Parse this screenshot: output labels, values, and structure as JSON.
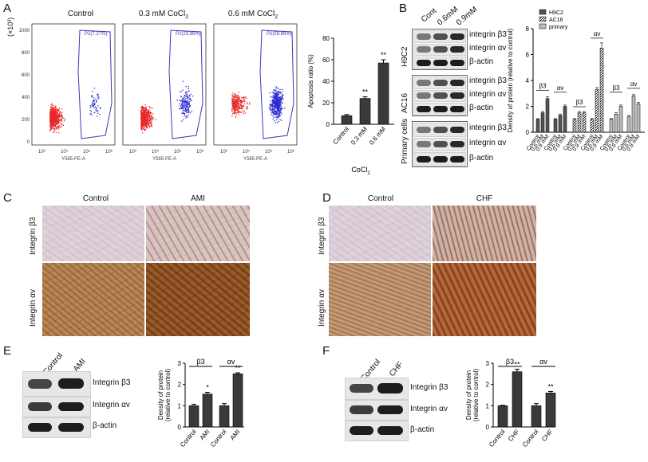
{
  "panels": {
    "A": "A",
    "B": "B",
    "C": "C",
    "D": "D",
    "E": "E",
    "F": "F"
  },
  "panel_a": {
    "flow_titles": [
      "Control",
      "0.3 mM CoCl",
      "0.6 mM CoCl"
    ],
    "subscript": "2",
    "gate_labels": [
      "P2(7.27%)",
      "P2(23.86%)",
      "P2(59.86%)"
    ],
    "y_axis_caption": "(×10³)",
    "y_ticks": [
      "1000",
      "800",
      "600",
      "400",
      "200",
      "0"
    ],
    "x_ticks": [
      "10³",
      "10⁴",
      "10⁵",
      "10⁶"
    ],
    "x_axis_caption": "Y585-PE-A",
    "colors": {
      "dots_red": "#e8282a",
      "dots_blue": "#2a2ad0",
      "gate": "#3a3ab8"
    }
  },
  "panel_b": {
    "lane_labels": [
      "Cont",
      "0.6mM",
      "0.9mM"
    ],
    "groups": [
      "H9C2",
      "AC16",
      "Primary cells"
    ],
    "band_labels": [
      "integrin β3",
      "integrin αv",
      "β-actin"
    ]
  },
  "panel_c": {
    "columns": [
      "Control",
      "AMI"
    ],
    "rows": [
      "Integrin β3",
      "Integrin αv"
    ]
  },
  "panel_d": {
    "columns": [
      "Control",
      "CHF"
    ],
    "rows": [
      "Integrin β3",
      "Integrin αv"
    ]
  },
  "panel_e": {
    "lanes": [
      "Control",
      "AMI"
    ],
    "bands": [
      "Integrin β3",
      "Integrin αv",
      "β-actin"
    ]
  },
  "panel_f": {
    "lanes": [
      "Control",
      "CHF"
    ],
    "bands": [
      "Integrin β3",
      "Integrin αv",
      "β-actin"
    ]
  },
  "chart_data": [
    {
      "id": "A-bar",
      "type": "bar",
      "categories": [
        "Control",
        "0.3 mM",
        "0.6 mM"
      ],
      "values": [
        8,
        24,
        57
      ],
      "errors": [
        1,
        1.5,
        3
      ],
      "sig": [
        "",
        "**",
        "**"
      ],
      "ylabel": "Apoptosis ratio (%)",
      "xlabel": "CoCl",
      "xlabel_sub": "2",
      "ylim": [
        0,
        80
      ],
      "yticks": [
        0,
        20,
        40,
        60,
        80
      ]
    },
    {
      "id": "B-bar",
      "type": "bar",
      "ylabel": "Density of protein (relative to control)",
      "ylim": [
        0,
        8
      ],
      "yticks": [
        0,
        2,
        4,
        6,
        8
      ],
      "legend": [
        "H9C2",
        "AC16",
        "primary"
      ],
      "legend_position": "top-left",
      "categories": [
        "Control",
        "0.6 mM",
        "0.9 mM",
        "Control",
        "0.6 mM",
        "0.9 mM"
      ],
      "groups": [
        {
          "name": "H9C2",
          "brackets": [
            "β3",
            "αv"
          ],
          "values": [
            1.0,
            1.5,
            2.6,
            1.0,
            1.3,
            2.0
          ],
          "errors": [
            0.05,
            0.1,
            0.15,
            0.05,
            0.1,
            0.1
          ]
        },
        {
          "name": "AC16",
          "brackets": [
            "β3",
            "αv"
          ],
          "values": [
            1.0,
            1.5,
            1.5,
            1.0,
            3.3,
            6.5
          ],
          "errors": [
            0.05,
            0.1,
            0.1,
            0.05,
            0.15,
            0.4
          ]
        },
        {
          "name": "primary",
          "brackets": [
            "β3",
            "αv"
          ],
          "values": [
            1.0,
            1.4,
            2.0,
            1.2,
            2.8,
            2.2
          ],
          "errors": [
            0.05,
            0.1,
            0.1,
            0.1,
            0.1,
            0.1
          ]
        }
      ],
      "bracket_labels": [
        "β3",
        "αv",
        "β3",
        "αv",
        "β3",
        "αv"
      ]
    },
    {
      "id": "E-bar",
      "type": "bar",
      "categories": [
        "Control",
        "AMI",
        "Control",
        "AMI"
      ],
      "values": [
        1.0,
        1.55,
        1.0,
        2.5
      ],
      "errors": [
        0.07,
        0.08,
        0.1,
        0.05
      ],
      "sig": [
        "",
        "*",
        "",
        "**"
      ],
      "brackets": [
        "β3",
        "αv"
      ],
      "ylabel": "Density of protein (relative to control)",
      "ylim": [
        0,
        3
      ],
      "yticks": [
        0,
        1,
        2,
        3
      ]
    },
    {
      "id": "F-bar",
      "type": "bar",
      "categories": [
        "Control",
        "CHF",
        "Control",
        "CHF"
      ],
      "values": [
        1.0,
        2.6,
        1.0,
        1.6
      ],
      "errors": [
        0.02,
        0.12,
        0.1,
        0.07
      ],
      "sig": [
        "",
        "**",
        "",
        "**"
      ],
      "brackets": [
        "β3",
        "αv"
      ],
      "ylabel": "Density of protein (relative to control)",
      "ylim": [
        0,
        3
      ],
      "yticks": [
        0,
        1,
        2,
        3
      ]
    }
  ]
}
